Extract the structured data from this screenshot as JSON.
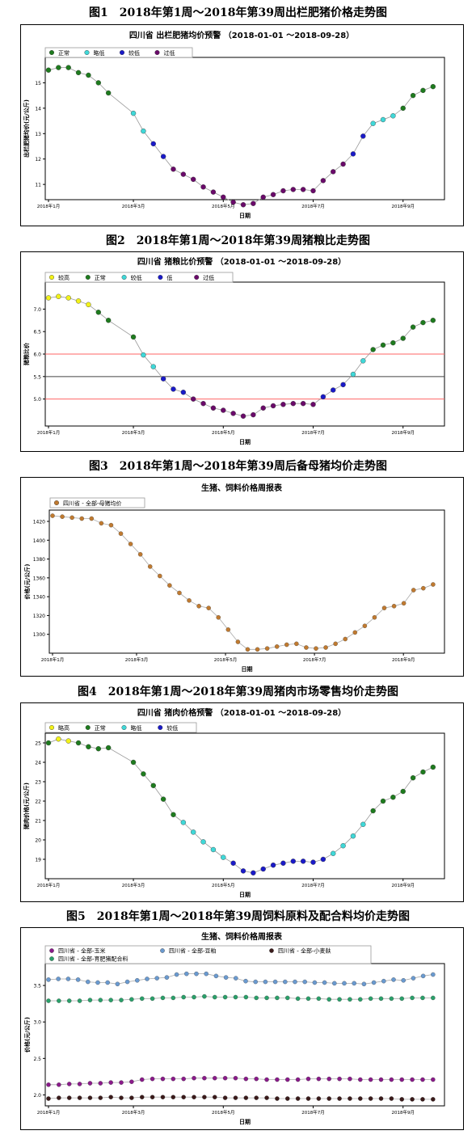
{
  "figures": [
    {
      "caption": "图1　2018年第1周～2018年第39周出栏肥猪价格走势图",
      "chart_data": {
        "type": "scatter",
        "title": "四川省 出栏肥猪均价预警 （2018-01-01 ～2018-09-28）",
        "xlabel": "日期",
        "ylabel": "出栏肥猪均价(元/公斤)",
        "x_ticks": [
          "2018年1月",
          "2018年3月",
          "2018年5月",
          "2018年7月",
          "2018年9月"
        ],
        "y_ticks": [
          11,
          12,
          13,
          14,
          15
        ],
        "ylim": [
          10.4,
          16.0
        ],
        "grid": false,
        "legend_position": "top-left",
        "legend": [
          {
            "name": "正常",
            "color": "#1e7b1e"
          },
          {
            "name": "略低",
            "color": "#40d8d8"
          },
          {
            "name": "较低",
            "color": "#1a1ac8"
          },
          {
            "name": "过低",
            "color": "#6a0a6a"
          }
        ],
        "points": [
          [
            0.0,
            15.5,
            "正常"
          ],
          [
            1.0,
            15.6,
            "正常"
          ],
          [
            2.0,
            15.6,
            "正常"
          ],
          [
            3.0,
            15.4,
            "正常"
          ],
          [
            4.0,
            15.3,
            "正常"
          ],
          [
            5.0,
            15.0,
            "正常"
          ],
          [
            6.0,
            14.6,
            "正常"
          ],
          [
            8.5,
            13.8,
            "略低"
          ],
          [
            9.5,
            13.1,
            "略低"
          ],
          [
            10.5,
            12.6,
            "较低"
          ],
          [
            11.5,
            12.1,
            "较低"
          ],
          [
            12.5,
            11.6,
            "过低"
          ],
          [
            13.5,
            11.4,
            "过低"
          ],
          [
            14.5,
            11.2,
            "过低"
          ],
          [
            15.5,
            10.9,
            "过低"
          ],
          [
            16.5,
            10.7,
            "过低"
          ],
          [
            17.5,
            10.5,
            "过低"
          ],
          [
            18.5,
            10.3,
            "过低"
          ],
          [
            19.5,
            10.2,
            "过低"
          ],
          [
            20.5,
            10.25,
            "过低"
          ],
          [
            21.5,
            10.5,
            "过低"
          ],
          [
            22.5,
            10.6,
            "过低"
          ],
          [
            23.5,
            10.75,
            "过低"
          ],
          [
            24.5,
            10.8,
            "过低"
          ],
          [
            25.5,
            10.8,
            "过低"
          ],
          [
            26.5,
            10.75,
            "过低"
          ],
          [
            27.5,
            11.15,
            "过低"
          ],
          [
            28.5,
            11.5,
            "过低"
          ],
          [
            29.5,
            11.8,
            "过低"
          ],
          [
            30.5,
            12.2,
            "较低"
          ],
          [
            31.5,
            12.9,
            "较低"
          ],
          [
            32.5,
            13.4,
            "略低"
          ],
          [
            33.5,
            13.55,
            "略低"
          ],
          [
            34.5,
            13.7,
            "略低"
          ],
          [
            35.5,
            14.0,
            "正常"
          ],
          [
            36.5,
            14.5,
            "正常"
          ],
          [
            37.5,
            14.7,
            "正常"
          ],
          [
            38.5,
            14.85,
            "正常"
          ]
        ]
      }
    },
    {
      "caption": "图2　2018年第1周～2018年第39周猪粮比走势图",
      "chart_data": {
        "type": "scatter",
        "title": "四川省 猪粮比价预警 （2018-01-01 ～2018-09-28）",
        "xlabel": "日期",
        "ylabel": "猪粮比价",
        "x_ticks": [
          "2018年1月",
          "2018年3月",
          "2018年5月",
          "2018年7月",
          "2018年9月"
        ],
        "y_ticks": [
          5.0,
          5.5,
          6.0,
          6.5,
          7.0
        ],
        "ylim": [
          4.4,
          7.6
        ],
        "grid": false,
        "legend_position": "top-left",
        "reference_lines": [
          {
            "y": 6.0,
            "color": "#ff6666"
          },
          {
            "y": 5.5,
            "color": "#444444"
          },
          {
            "y": 5.0,
            "color": "#ff6666"
          }
        ],
        "legend": [
          {
            "name": "较高",
            "color": "#f2f21a"
          },
          {
            "name": "正常",
            "color": "#1e7b1e"
          },
          {
            "name": "较低",
            "color": "#40d8d8"
          },
          {
            "name": "低",
            "color": "#1a1ac8"
          },
          {
            "name": "过低",
            "color": "#6a0a6a"
          }
        ],
        "points": [
          [
            0.0,
            7.25,
            "较高"
          ],
          [
            1.0,
            7.28,
            "较高"
          ],
          [
            2.0,
            7.25,
            "较高"
          ],
          [
            3.0,
            7.18,
            "较高"
          ],
          [
            4.0,
            7.1,
            "较高"
          ],
          [
            5.0,
            6.93,
            "正常"
          ],
          [
            6.0,
            6.75,
            "正常"
          ],
          [
            8.5,
            6.38,
            "正常"
          ],
          [
            9.5,
            5.98,
            "较低"
          ],
          [
            10.5,
            5.72,
            "较低"
          ],
          [
            11.5,
            5.45,
            "低"
          ],
          [
            12.5,
            5.22,
            "低"
          ],
          [
            13.5,
            5.15,
            "低"
          ],
          [
            14.5,
            5.0,
            "过低"
          ],
          [
            15.5,
            4.9,
            "过低"
          ],
          [
            16.5,
            4.8,
            "过低"
          ],
          [
            17.5,
            4.75,
            "过低"
          ],
          [
            18.5,
            4.68,
            "过低"
          ],
          [
            19.5,
            4.62,
            "过低"
          ],
          [
            20.5,
            4.65,
            "过低"
          ],
          [
            21.5,
            4.8,
            "过低"
          ],
          [
            22.5,
            4.85,
            "过低"
          ],
          [
            23.5,
            4.88,
            "过低"
          ],
          [
            24.5,
            4.9,
            "过低"
          ],
          [
            25.5,
            4.9,
            "过低"
          ],
          [
            26.5,
            4.88,
            "过低"
          ],
          [
            27.5,
            5.05,
            "低"
          ],
          [
            28.5,
            5.2,
            "低"
          ],
          [
            29.5,
            5.32,
            "低"
          ],
          [
            30.5,
            5.55,
            "较低"
          ],
          [
            31.5,
            5.85,
            "较低"
          ],
          [
            32.5,
            6.1,
            "正常"
          ],
          [
            33.5,
            6.2,
            "正常"
          ],
          [
            34.5,
            6.25,
            "正常"
          ],
          [
            35.5,
            6.35,
            "正常"
          ],
          [
            36.5,
            6.6,
            "正常"
          ],
          [
            37.5,
            6.7,
            "正常"
          ],
          [
            38.5,
            6.75,
            "正常"
          ]
        ]
      }
    },
    {
      "caption": "图3　2018年第1周～2018年第39周后备母猪均价走势图",
      "chart_data": {
        "type": "line",
        "title": "生猪、饲料价格周报表",
        "xlabel": "日期",
        "ylabel": "价格(元/公斤)",
        "x_ticks": [
          "2018年1月",
          "2018年3月",
          "2018年5月",
          "2018年7月",
          "2018年9月"
        ],
        "y_ticks": [
          1300,
          1320,
          1340,
          1360,
          1380,
          1400,
          1420
        ],
        "ylim": [
          1280,
          1432
        ],
        "grid": false,
        "legend_position": "top-left",
        "series": [
          {
            "name": "四川省 - 全部-母猪均价",
            "color": "#c07a30",
            "values": [
              1426,
              1425,
              1424,
              1423,
              1423,
              1418,
              1416,
              1407,
              1396,
              1385,
              1372,
              1362,
              1352,
              1344,
              1336,
              1330,
              1328,
              1318,
              1305,
              1292,
              1284,
              1284,
              1285,
              1287,
              1289,
              1290,
              1286,
              1285,
              1286,
              1290,
              1295,
              1302,
              1309,
              1318,
              1328,
              1330,
              1333,
              1347,
              1349,
              1353
            ]
          }
        ]
      }
    },
    {
      "caption": "图4　2018年第1周～2018年第39周猪肉市场零售均价走势图",
      "chart_data": {
        "type": "scatter",
        "title": "四川省 猪肉价格预警 （2018-01-01 ～2018-09-28）",
        "xlabel": "日期",
        "ylabel": "猪肉价格(元/公斤)",
        "x_ticks": [
          "2018年1月",
          "2018年3月",
          "2018年5月",
          "2018年7月",
          "2018年9月"
        ],
        "y_ticks": [
          19,
          20,
          21,
          22,
          23,
          24,
          25
        ],
        "ylim": [
          18.0,
          25.5
        ],
        "grid": false,
        "legend_position": "top-left",
        "legend": [
          {
            "name": "略高",
            "color": "#f2f21a"
          },
          {
            "name": "正常",
            "color": "#1e7b1e"
          },
          {
            "name": "略低",
            "color": "#40d8d8"
          },
          {
            "name": "较低",
            "color": "#1a1ac8"
          }
        ],
        "points": [
          [
            0.0,
            25.0,
            "正常"
          ],
          [
            1.0,
            25.2,
            "略高"
          ],
          [
            2.0,
            25.1,
            "略高"
          ],
          [
            3.0,
            25.0,
            "正常"
          ],
          [
            4.0,
            24.8,
            "正常"
          ],
          [
            5.0,
            24.7,
            "正常"
          ],
          [
            6.0,
            24.75,
            "正常"
          ],
          [
            8.5,
            24.0,
            "正常"
          ],
          [
            9.5,
            23.4,
            "正常"
          ],
          [
            10.5,
            22.8,
            "正常"
          ],
          [
            11.5,
            22.1,
            "正常"
          ],
          [
            12.5,
            21.3,
            "正常"
          ],
          [
            13.5,
            20.9,
            "略低"
          ],
          [
            14.5,
            20.4,
            "略低"
          ],
          [
            15.5,
            19.9,
            "略低"
          ],
          [
            16.5,
            19.5,
            "略低"
          ],
          [
            17.5,
            19.1,
            "略低"
          ],
          [
            18.5,
            18.8,
            "较低"
          ],
          [
            19.5,
            18.4,
            "较低"
          ],
          [
            20.5,
            18.3,
            "较低"
          ],
          [
            21.5,
            18.5,
            "较低"
          ],
          [
            22.5,
            18.7,
            "较低"
          ],
          [
            23.5,
            18.8,
            "较低"
          ],
          [
            24.5,
            18.9,
            "较低"
          ],
          [
            25.5,
            18.9,
            "较低"
          ],
          [
            26.5,
            18.85,
            "较低"
          ],
          [
            27.5,
            19.0,
            "较低"
          ],
          [
            28.5,
            19.3,
            "略低"
          ],
          [
            29.5,
            19.7,
            "略低"
          ],
          [
            30.5,
            20.2,
            "略低"
          ],
          [
            31.5,
            20.8,
            "略低"
          ],
          [
            32.5,
            21.5,
            "正常"
          ],
          [
            33.5,
            22.0,
            "正常"
          ],
          [
            34.5,
            22.2,
            "正常"
          ],
          [
            35.5,
            22.5,
            "正常"
          ],
          [
            36.5,
            23.2,
            "正常"
          ],
          [
            37.5,
            23.5,
            "正常"
          ],
          [
            38.5,
            23.75,
            "正常"
          ]
        ]
      }
    },
    {
      "caption": "图5　2018年第1周～2018年第39周饲料原料及配合料均价走势图",
      "chart_data": {
        "type": "line",
        "title": "生猪、饲料价格周报表",
        "xlabel": "日期",
        "ylabel": "价格(元/公斤)",
        "x_ticks": [
          "2018年1月",
          "2018年3月",
          "2018年5月",
          "2018年7月",
          "2018年9月"
        ],
        "y_ticks": [
          2.0,
          2.5,
          3.0,
          3.5
        ],
        "ylim": [
          1.85,
          3.8
        ],
        "grid": false,
        "legend_position": "top",
        "series": [
          {
            "name": "四川省 - 全部-玉米",
            "color": "#8a1a8a",
            "values": [
              2.14,
              2.14,
              2.15,
              2.15,
              2.16,
              2.16,
              2.17,
              2.17,
              2.18,
              2.21,
              2.22,
              2.22,
              2.22,
              2.22,
              2.23,
              2.23,
              2.23,
              2.23,
              2.23,
              2.22,
              2.22,
              2.21,
              2.21,
              2.21,
              2.21,
              2.22,
              2.22,
              2.22,
              2.22,
              2.22,
              2.21,
              2.21,
              2.21,
              2.21,
              2.21,
              2.21,
              2.21,
              2.21
            ]
          },
          {
            "name": "四川省 - 全部-豆粕",
            "color": "#6a9ad0",
            "values": [
              3.58,
              3.59,
              3.59,
              3.58,
              3.55,
              3.54,
              3.54,
              3.52,
              3.55,
              3.57,
              3.59,
              3.6,
              3.61,
              3.65,
              3.66,
              3.66,
              3.66,
              3.63,
              3.61,
              3.6,
              3.56,
              3.55,
              3.55,
              3.55,
              3.55,
              3.55,
              3.55,
              3.54,
              3.54,
              3.53,
              3.53,
              3.53,
              3.52,
              3.54,
              3.56,
              3.58,
              3.57,
              3.6,
              3.63,
              3.65
            ]
          },
          {
            "name": "四川省 - 全部-小麦麸",
            "color": "#3a1a1a",
            "values": [
              1.95,
              1.96,
              1.96,
              1.96,
              1.96,
              1.96,
              1.97,
              1.96,
              1.96,
              1.97,
              1.97,
              1.97,
              1.97,
              1.97,
              1.97,
              1.97,
              1.97,
              1.96,
              1.96,
              1.96,
              1.96,
              1.96,
              1.95,
              1.95,
              1.95,
              1.95,
              1.95,
              1.95,
              1.95,
              1.95,
              1.95,
              1.95,
              1.95,
              1.95,
              1.94,
              1.94,
              1.94,
              1.94
            ]
          },
          {
            "name": "四川省 - 全部-育肥猪配合料",
            "color": "#2aa06a",
            "values": [
              3.29,
              3.29,
              3.29,
              3.29,
              3.3,
              3.3,
              3.3,
              3.3,
              3.31,
              3.32,
              3.32,
              3.33,
              3.33,
              3.34,
              3.34,
              3.35,
              3.34,
              3.34,
              3.34,
              3.34,
              3.33,
              3.33,
              3.33,
              3.33,
              3.32,
              3.32,
              3.32,
              3.31,
              3.31,
              3.31,
              3.31,
              3.32,
              3.32,
              3.32,
              3.32,
              3.33,
              3.33,
              3.33
            ]
          }
        ]
      }
    }
  ]
}
